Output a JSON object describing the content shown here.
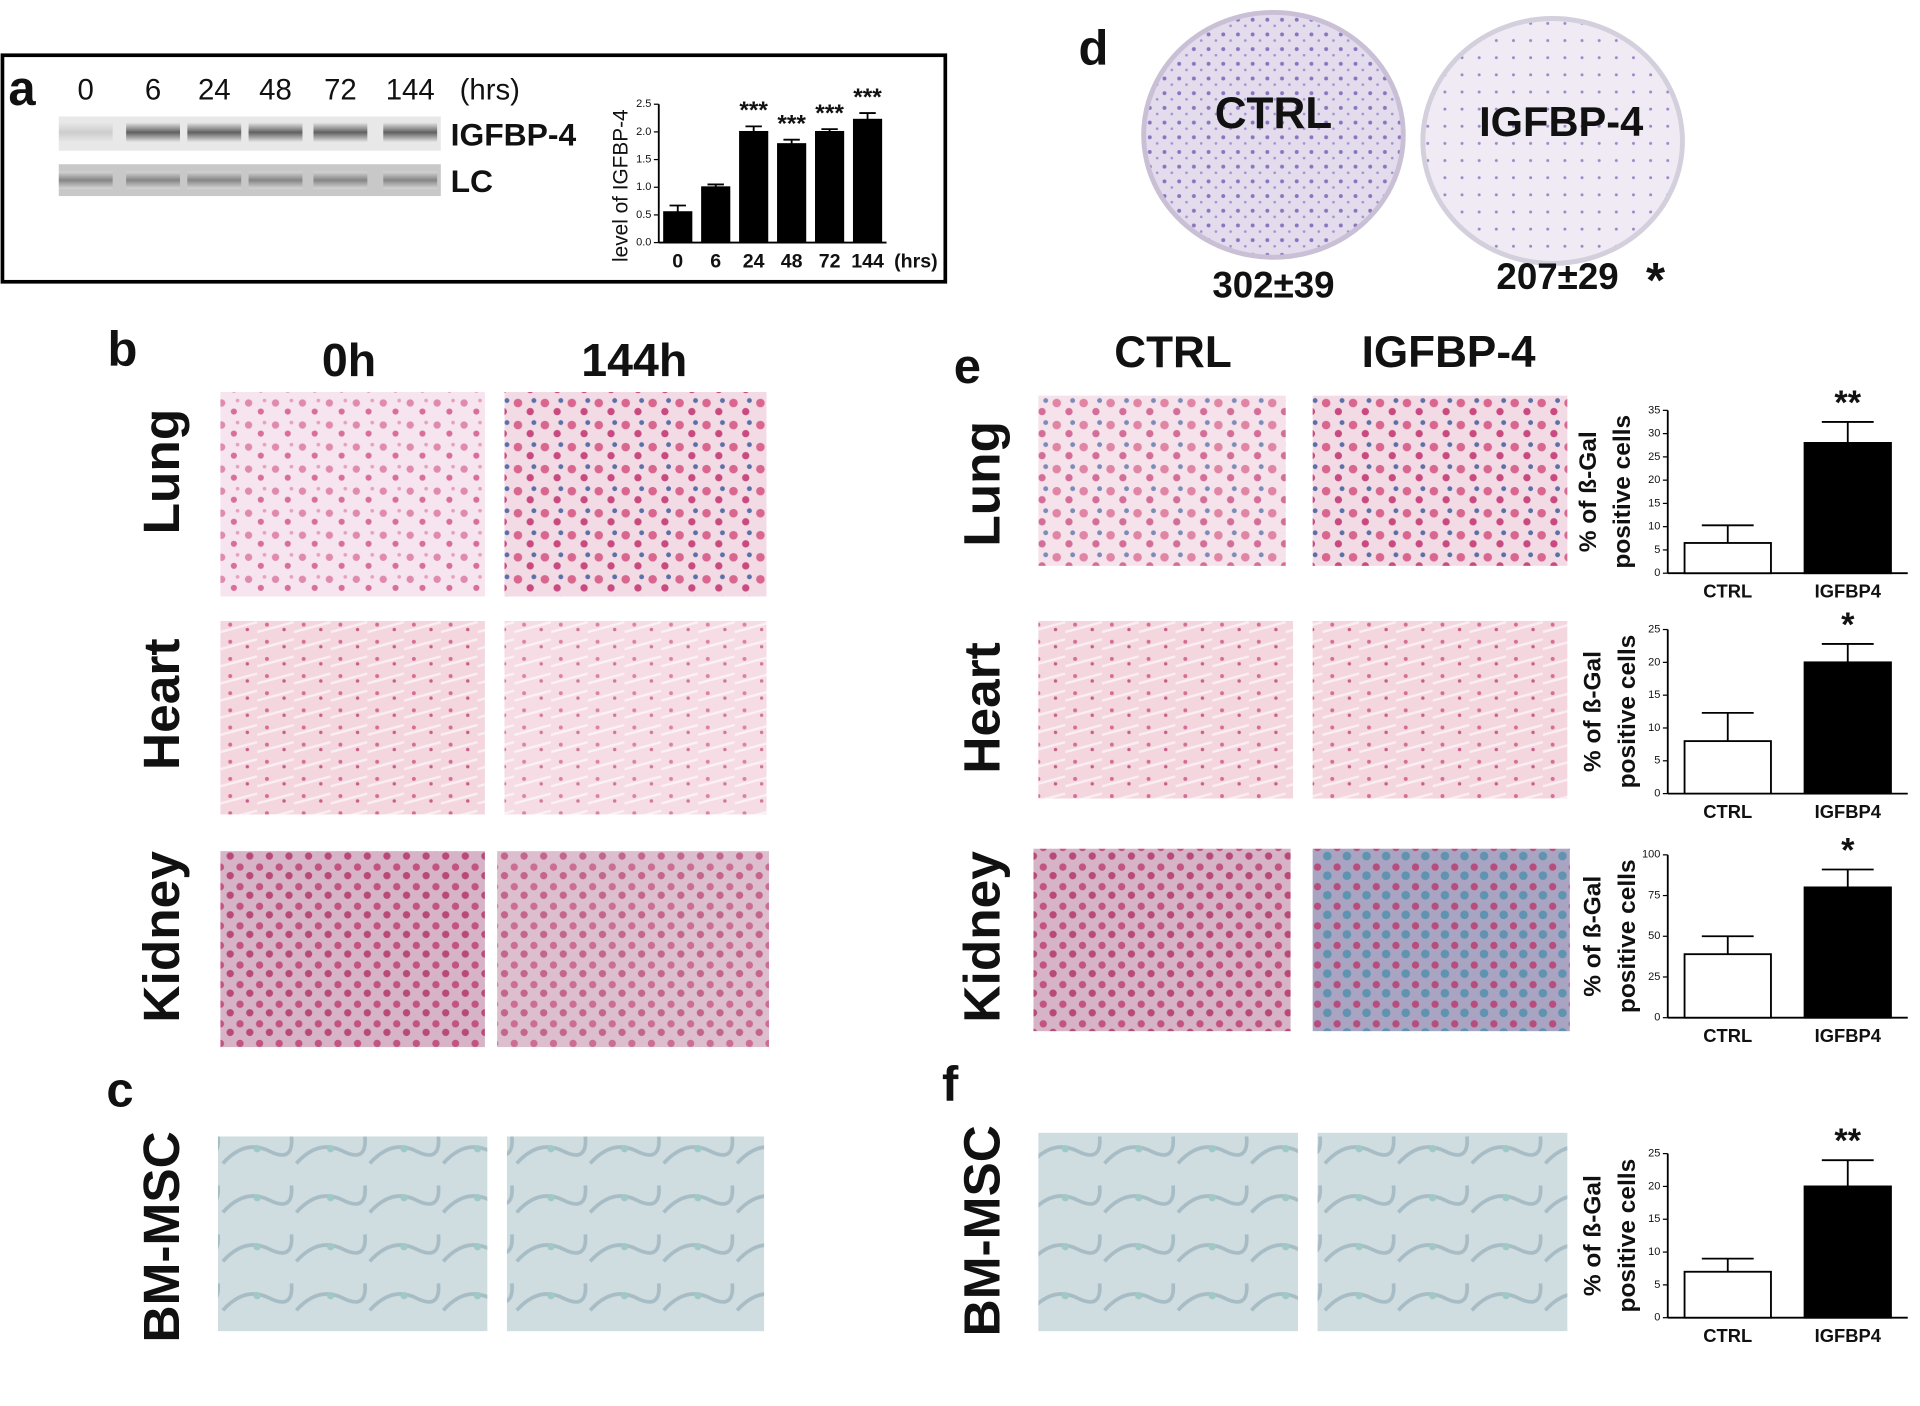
{
  "panels": {
    "a": {
      "label": "a",
      "lanes": [
        "0",
        "6",
        "24",
        "48",
        "72",
        "144"
      ],
      "unit": "(hrs)",
      "bands": [
        "IGFBP-4",
        "LC"
      ]
    },
    "b": {
      "label": "b",
      "columns": [
        "0h",
        "144h"
      ],
      "rows": [
        "Lung",
        "Heart",
        "Kidney"
      ]
    },
    "c": {
      "label": "c",
      "row": "BM-MSC"
    },
    "d": {
      "label": "d",
      "plates": [
        {
          "name": "CTRL",
          "count": "302±39"
        },
        {
          "name": "IGFBP-4",
          "count": "207±29",
          "significance": "*"
        }
      ]
    },
    "e": {
      "label": "e",
      "columns": [
        "CTRL",
        "IGFBP-4"
      ],
      "rows": [
        "Lung",
        "Heart",
        "Kidney"
      ]
    },
    "f": {
      "label": "f",
      "row": "BM-MSC"
    }
  },
  "chart_data": [
    {
      "type": "bar",
      "ylabel": "level of IGFBP-4",
      "xunit": "(hrs)",
      "categories": [
        "0",
        "6",
        "24",
        "48",
        "72",
        "144"
      ],
      "values": [
        0.55,
        1.0,
        2.0,
        1.78,
        2.0,
        2.22
      ],
      "errors": [
        0.12,
        0.05,
        0.1,
        0.08,
        0.05,
        0.12
      ],
      "annotations": [
        null,
        null,
        "***",
        "***",
        "***",
        "***"
      ],
      "color": "#000000",
      "ylim": [
        0,
        2.5
      ],
      "yticks": [
        {
          "value": 0,
          "label": "0.0"
        },
        {
          "value": 0.5,
          "label": "0.5"
        },
        {
          "value": 1,
          "label": "1.0"
        },
        {
          "value": 1.5,
          "label": "1.5"
        },
        {
          "value": 2,
          "label": "2.0"
        },
        {
          "value": 2.5,
          "label": "2.5"
        }
      ]
    },
    {
      "type": "bar",
      "ylabel": [
        "% of ß-Gal",
        "positive cells"
      ],
      "categories": [
        "CTRL",
        "IGFBP4"
      ],
      "values": [
        6.5,
        28
      ],
      "errors": [
        3.8,
        4.5
      ],
      "annotations": [
        null,
        "**"
      ],
      "colors": [
        "#ffffff",
        "#000000"
      ],
      "ylim": [
        0,
        35
      ],
      "yticks": [
        0,
        5,
        10,
        15,
        20,
        25,
        30,
        35
      ]
    },
    {
      "type": "bar",
      "ylabel": [
        "% of ß-Gal",
        "positive cells"
      ],
      "categories": [
        "CTRL",
        "IGFBP4"
      ],
      "values": [
        8,
        20
      ],
      "errors": [
        4.3,
        2.8
      ],
      "annotations": [
        null,
        "*"
      ],
      "colors": [
        "#ffffff",
        "#000000"
      ],
      "ylim": [
        0,
        25
      ],
      "yticks": [
        0,
        5,
        10,
        15,
        20,
        25
      ]
    },
    {
      "type": "bar",
      "ylabel": [
        "% of ß-Gal",
        "positive cells"
      ],
      "categories": [
        "CTRL",
        "IGFBP4"
      ],
      "values": [
        39,
        80
      ],
      "errors": [
        11,
        11
      ],
      "annotations": [
        null,
        "*"
      ],
      "colors": [
        "#ffffff",
        "#000000"
      ],
      "ylim": [
        0,
        100
      ],
      "yticks": [
        0,
        25,
        50,
        75,
        100
      ]
    },
    {
      "type": "bar",
      "ylabel": [
        "% of ß-Gal",
        "positive cells"
      ],
      "categories": [
        "CTRL",
        "IGFBP4"
      ],
      "values": [
        7,
        20
      ],
      "errors": [
        2,
        4
      ],
      "annotations": [
        null,
        "**"
      ],
      "colors": [
        "#ffffff",
        "#000000"
      ],
      "ylim": [
        0,
        25
      ],
      "yticks": [
        0,
        5,
        10,
        15,
        20,
        25
      ]
    }
  ]
}
